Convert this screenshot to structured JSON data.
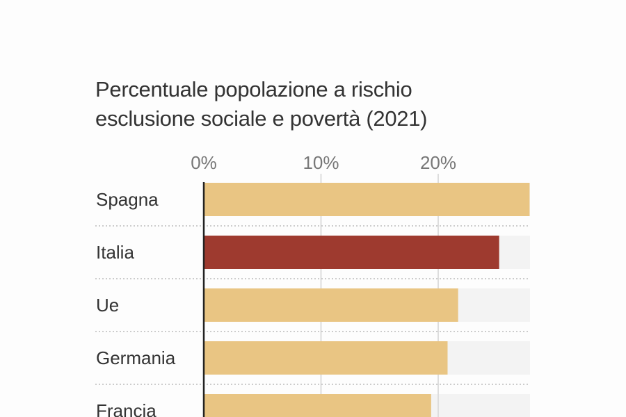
{
  "chart_data": {
    "type": "bar",
    "orientation": "horizontal",
    "title": "Percentuale popolazione a rischio esclusione sociale e povertà (2021)",
    "title_lines": [
      "Percentuale popolazione a rischio",
      "esclusione sociale e povertà (2021)"
    ],
    "xlabel": "",
    "ylabel": "",
    "xlim": [
      0,
      27.8
    ],
    "x_ticks": [
      0,
      10,
      20
    ],
    "x_tick_labels": [
      "0%",
      "10%",
      "20%"
    ],
    "categories": [
      "Spagna",
      "Italia",
      "Ue",
      "Germania",
      "Francia"
    ],
    "values": [
      27.8,
      25.2,
      21.7,
      20.8,
      19.4
    ],
    "highlight": "Italia",
    "colors": {
      "default": "#e9c583",
      "highlight": "#9e3a2f",
      "track": "#f3f3f3",
      "axis": "#222222",
      "grid": "#dddddd"
    },
    "grid": true,
    "legend": "none"
  }
}
